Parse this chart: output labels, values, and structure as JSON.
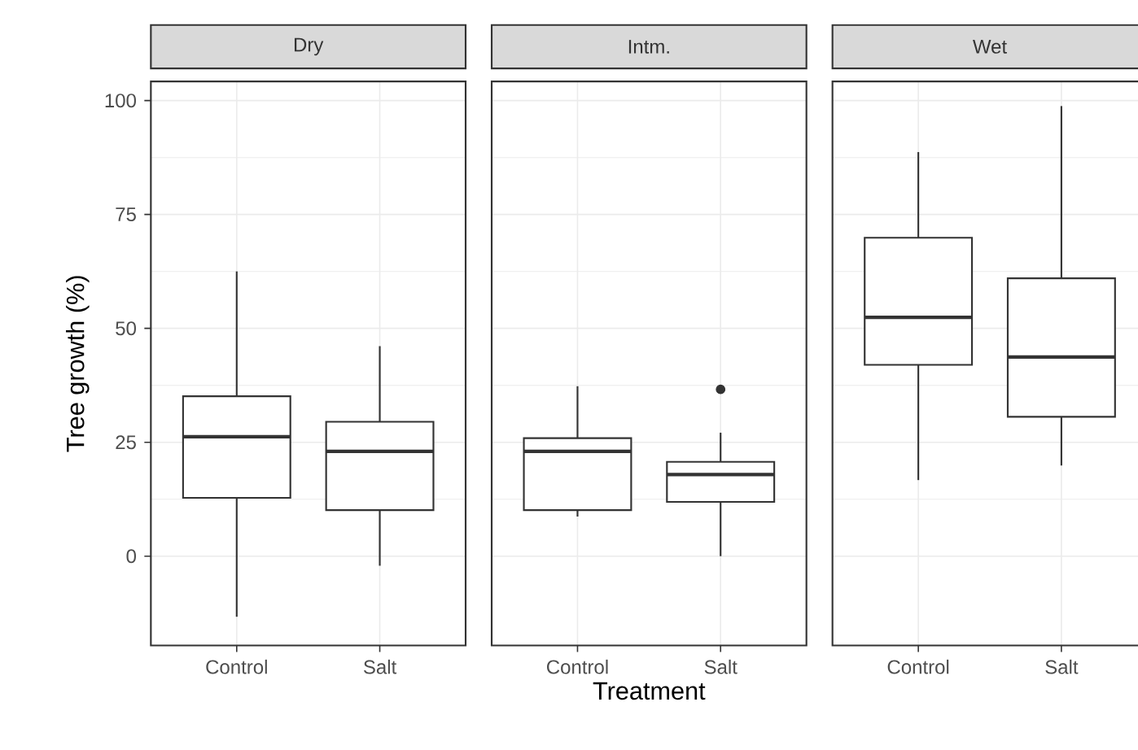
{
  "chart_data": [
    {
      "type": "box",
      "title": "Dry",
      "ylabel": "Tree growth (%)",
      "categories": [
        "Control",
        "Salt"
      ],
      "color": "#333333",
      "ylim": [
        -19.6,
        104.2
      ],
      "yticks": [
        0,
        25,
        50,
        75,
        100
      ],
      "grid": true,
      "boxes": [
        {
          "low": -13.3,
          "q1": 12.8,
          "median": 26.2,
          "q3": 35.1,
          "high": 62.5
        },
        {
          "low": -2.1,
          "q1": 10.1,
          "median": 23.0,
          "q3": 29.5,
          "high": 46.1
        }
      ]
    },
    {
      "type": "box",
      "title": "Intm.",
      "xlabel": "Treatment",
      "categories": [
        "Control",
        "Salt"
      ],
      "color": "#333333",
      "ylim": [
        -19.6,
        104.2
      ],
      "yticks": [
        0,
        25,
        50,
        75,
        100
      ],
      "grid": true,
      "tick_labels": "x",
      "boxes": [
        {
          "low": 8.7,
          "q1": 10.1,
          "median": 23.0,
          "q3": 25.9,
          "high": 37.3
        },
        {
          "low": 0,
          "q1": 11.9,
          "median": 17.9,
          "q3": 20.7,
          "high": 27.1,
          "outliers": [
            36.6
          ]
        }
      ]
    },
    {
      "type": "box",
      "title": "Wet",
      "categories": [
        "Control",
        "Salt"
      ],
      "color": "#333333",
      "ylim": [
        -19.6,
        104.2
      ],
      "yticks": [
        0,
        25,
        50,
        75,
        100
      ],
      "grid": true,
      "tick_labels": "x",
      "boxes": [
        {
          "low": 16.7,
          "q1": 42.0,
          "median": 52.4,
          "q3": 69.9,
          "high": 88.7
        },
        {
          "low": 19.9,
          "q1": 30.6,
          "median": 43.7,
          "q3": 61.0,
          "high": 98.8
        }
      ]
    }
  ]
}
